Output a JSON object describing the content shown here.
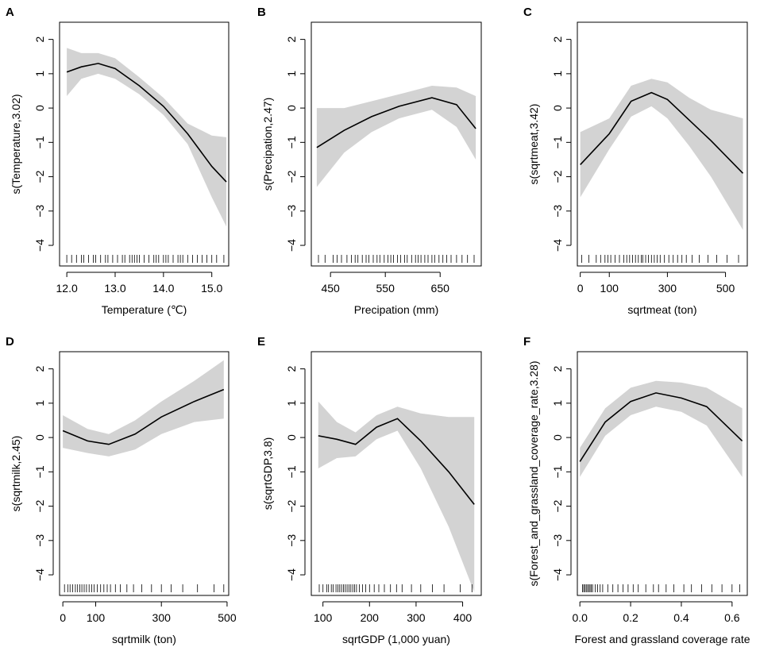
{
  "chart_data": [
    {
      "type": "line",
      "panel": "A",
      "ylabel": "s(Temperature,3.02)",
      "xlabel": "Temperature (℃)",
      "xlim": [
        11.85,
        15.35
      ],
      "ylim": [
        -4.6,
        2.5
      ],
      "xticks": [
        12,
        13,
        14,
        15
      ],
      "xtick_labels": [
        "12.0",
        "13.0",
        "14.0",
        "15.0"
      ],
      "yticks": [
        -4,
        -3,
        -2,
        -1,
        0,
        1,
        2
      ],
      "ytick_labels": [
        "−4",
        "−3",
        "−2",
        "−1",
        "0",
        "1",
        "2"
      ],
      "x": [
        12.0,
        12.3,
        12.65,
        13.0,
        13.5,
        14.0,
        14.5,
        15.0,
        15.3
      ],
      "fit": [
        1.05,
        1.2,
        1.3,
        1.15,
        0.65,
        0.05,
        -0.75,
        -1.7,
        -2.15
      ],
      "lower": [
        0.35,
        0.85,
        1.0,
        0.85,
        0.4,
        -0.2,
        -1.05,
        -2.6,
        -3.45
      ],
      "upper": [
        1.75,
        1.6,
        1.6,
        1.45,
        0.9,
        0.3,
        -0.45,
        -0.8,
        -0.85
      ],
      "rug": [
        12.0,
        12.1,
        12.2,
        12.3,
        12.35,
        12.45,
        12.55,
        12.6,
        12.7,
        12.8,
        12.85,
        12.95,
        13.05,
        13.15,
        13.2,
        13.3,
        13.35,
        13.4,
        13.45,
        13.5,
        13.6,
        13.7,
        13.8,
        13.85,
        13.9,
        14.0,
        14.05,
        14.1,
        14.2,
        14.3,
        14.35,
        14.4,
        14.5,
        14.6,
        14.7,
        14.8,
        14.9,
        15.0,
        15.1,
        15.25
      ]
    },
    {
      "type": "line",
      "panel": "B",
      "ylabel": "s(Precipation,2.47)",
      "xlabel": "Precipation (mm)",
      "xlim": [
        415,
        725
      ],
      "ylim": [
        -4.6,
        2.5
      ],
      "xticks": [
        450,
        550,
        650
      ],
      "xtick_labels": [
        "450",
        "550",
        "650"
      ],
      "yticks": [
        -4,
        -3,
        -2,
        -1,
        0,
        1,
        2
      ],
      "ytick_labels": [
        "−4",
        "−3",
        "−2",
        "−1",
        "0",
        "1",
        "2"
      ],
      "x": [
        425,
        475,
        525,
        575,
        635,
        680,
        715
      ],
      "fit": [
        -1.15,
        -0.65,
        -0.25,
        0.05,
        0.3,
        0.1,
        -0.6
      ],
      "lower": [
        -2.3,
        -1.3,
        -0.7,
        -0.3,
        -0.05,
        -0.55,
        -1.5
      ],
      "upper": [
        0.0,
        0.0,
        0.2,
        0.4,
        0.65,
        0.6,
        0.35
      ],
      "rug": [
        428,
        440,
        455,
        462,
        470,
        480,
        488,
        495,
        500,
        508,
        515,
        520,
        528,
        535,
        540,
        548,
        555,
        560,
        565,
        572,
        578,
        585,
        590,
        598,
        605,
        610,
        615,
        622,
        628,
        635,
        640,
        648,
        655,
        662,
        670,
        680,
        690,
        700,
        712
      ]
    },
    {
      "type": "line",
      "panel": "C",
      "ylabel": "s(sqrtmeat,3.42)",
      "xlabel": "sqrtmeat (ton)",
      "xlim": [
        -10,
        575
      ],
      "ylim": [
        -4.6,
        2.5
      ],
      "xticks": [
        0,
        100,
        300,
        500
      ],
      "xtick_labels": [
        "0",
        "100",
        "300",
        "500"
      ],
      "yticks": [
        -4,
        -3,
        -2,
        -1,
        0,
        1,
        2
      ],
      "ytick_labels": [
        "−4",
        "−3",
        "−2",
        "−1",
        "0",
        "1",
        "2"
      ],
      "x": [
        0,
        100,
        175,
        245,
        300,
        375,
        450,
        560
      ],
      "fit": [
        -1.65,
        -0.75,
        0.2,
        0.45,
        0.25,
        -0.35,
        -0.95,
        -1.9
      ],
      "lower": [
        -2.6,
        -1.2,
        -0.25,
        0.05,
        -0.3,
        -1.1,
        -2.0,
        -3.55
      ],
      "upper": [
        -0.7,
        -0.3,
        0.65,
        0.85,
        0.75,
        0.3,
        -0.05,
        -0.3
      ],
      "rug": [
        5,
        30,
        55,
        70,
        85,
        95,
        105,
        120,
        135,
        150,
        160,
        170,
        180,
        190,
        200,
        210,
        215,
        225,
        235,
        245,
        255,
        265,
        275,
        290,
        305,
        320,
        335,
        350,
        365,
        385,
        410,
        440,
        470,
        505,
        545
      ]
    },
    {
      "type": "line",
      "panel": "D",
      "ylabel": "s(sqrtmilk,2.45)",
      "xlabel": "sqrtmilk (ton)",
      "xlim": [
        -10,
        505
      ],
      "ylim": [
        -4.6,
        2.5
      ],
      "xticks": [
        0,
        100,
        300,
        500
      ],
      "xtick_labels": [
        "0",
        "100",
        "300",
        "500"
      ],
      "yticks": [
        -4,
        -3,
        -2,
        -1,
        0,
        1,
        2
      ],
      "ytick_labels": [
        "−4",
        "−3",
        "−2",
        "−1",
        "0",
        "1",
        "2"
      ],
      "x": [
        0,
        75,
        140,
        220,
        300,
        400,
        490
      ],
      "fit": [
        0.2,
        -0.1,
        -0.2,
        0.1,
        0.6,
        1.05,
        1.4
      ],
      "lower": [
        -0.3,
        -0.45,
        -0.55,
        -0.35,
        0.1,
        0.45,
        0.55
      ],
      "upper": [
        0.65,
        0.25,
        0.1,
        0.5,
        1.05,
        1.65,
        2.25
      ],
      "rug": [
        5,
        15,
        22,
        30,
        38,
        45,
        52,
        58,
        65,
        72,
        80,
        88,
        95,
        105,
        115,
        125,
        135,
        145,
        160,
        175,
        195,
        215,
        240,
        270,
        300,
        330,
        365,
        410,
        460,
        490
      ]
    },
    {
      "type": "line",
      "panel": "E",
      "ylabel": "s(sqrtGDP,3.8)",
      "xlabel": "sqrtGDP (1,000 yuan)",
      "xlim": [
        75,
        440
      ],
      "ylim": [
        -4.6,
        2.5
      ],
      "xticks": [
        100,
        200,
        300,
        400
      ],
      "xtick_labels": [
        "100",
        "200",
        "300",
        "400"
      ],
      "yticks": [
        -4,
        -3,
        -2,
        -1,
        0,
        1,
        2
      ],
      "ytick_labels": [
        "−4",
        "−3",
        "−2",
        "−1",
        "0",
        "1",
        "2"
      ],
      "x": [
        90,
        130,
        170,
        215,
        260,
        310,
        370,
        425
      ],
      "fit": [
        0.05,
        -0.05,
        -0.2,
        0.3,
        0.55,
        -0.1,
        -1.0,
        -1.95
      ],
      "lower": [
        -0.9,
        -0.6,
        -0.55,
        -0.05,
        0.2,
        -0.9,
        -2.6,
        -4.5
      ],
      "upper": [
        1.05,
        0.45,
        0.15,
        0.65,
        0.9,
        0.7,
        0.6,
        0.6
      ],
      "rug": [
        92,
        100,
        108,
        112,
        118,
        122,
        128,
        132,
        136,
        140,
        144,
        148,
        152,
        156,
        160,
        164,
        168,
        172,
        178,
        185,
        192,
        200,
        210,
        220,
        232,
        245,
        258,
        270,
        290,
        310,
        335,
        360,
        395,
        420
      ]
    },
    {
      "type": "line",
      "panel": "F",
      "ylabel": "s(Forest_and_grassland_coverage_rate,3.28)",
      "xlabel": "Forest and grassland coverage rate",
      "xlim": [
        -0.01,
        0.66
      ],
      "ylim": [
        -4.6,
        2.5
      ],
      "xticks": [
        0.0,
        0.2,
        0.4,
        0.6
      ],
      "xtick_labels": [
        "0.0",
        "0.2",
        "0.4",
        "0.6"
      ],
      "yticks": [
        -4,
        -3,
        -2,
        -1,
        0,
        1,
        2
      ],
      "ytick_labels": [
        "−4",
        "−3",
        "−2",
        "−1",
        "0",
        "1",
        "2"
      ],
      "x": [
        0.0,
        0.1,
        0.2,
        0.3,
        0.4,
        0.5,
        0.64
      ],
      "fit": [
        -0.7,
        0.45,
        1.05,
        1.3,
        1.15,
        0.9,
        -0.1
      ],
      "lower": [
        -1.15,
        0.05,
        0.65,
        0.9,
        0.75,
        0.35,
        -1.15
      ],
      "upper": [
        -0.3,
        0.85,
        1.45,
        1.65,
        1.6,
        1.45,
        0.85
      ],
      "rug": [
        0.01,
        0.015,
        0.02,
        0.025,
        0.03,
        0.035,
        0.04,
        0.045,
        0.05,
        0.06,
        0.07,
        0.08,
        0.09,
        0.11,
        0.13,
        0.15,
        0.17,
        0.19,
        0.21,
        0.23,
        0.26,
        0.29,
        0.31,
        0.34,
        0.37,
        0.41,
        0.44,
        0.48,
        0.52,
        0.56,
        0.6,
        0.63
      ]
    }
  ]
}
